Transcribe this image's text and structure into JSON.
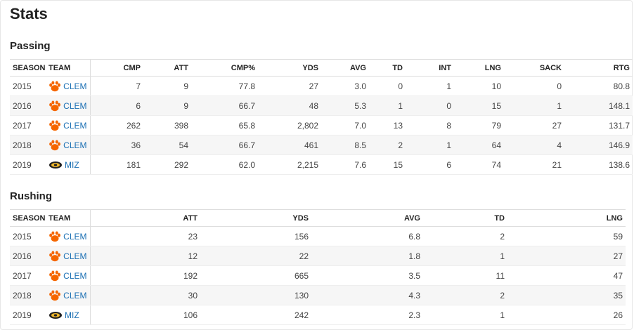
{
  "title": "Stats",
  "passing": {
    "title": "Passing",
    "headers": [
      "SEASON",
      "TEAM",
      "CMP",
      "ATT",
      "CMP%",
      "YDS",
      "AVG",
      "TD",
      "INT",
      "LNG",
      "SACK",
      "RTG"
    ],
    "rows": [
      {
        "season": "2015",
        "team": "CLEM",
        "logo": "clemson-paw-icon",
        "cmp": "7",
        "att": "9",
        "pct": "77.8",
        "yds": "27",
        "avg": "3.0",
        "td": "0",
        "int": "1",
        "lng": "10",
        "sack": "0",
        "rtg": "80.8"
      },
      {
        "season": "2016",
        "team": "CLEM",
        "logo": "clemson-paw-icon",
        "cmp": "6",
        "att": "9",
        "pct": "66.7",
        "yds": "48",
        "avg": "5.3",
        "td": "1",
        "int": "0",
        "lng": "15",
        "sack": "1",
        "rtg": "148.1"
      },
      {
        "season": "2017",
        "team": "CLEM",
        "logo": "clemson-paw-icon",
        "cmp": "262",
        "att": "398",
        "pct": "65.8",
        "yds": "2,802",
        "avg": "7.0",
        "td": "13",
        "int": "8",
        "lng": "79",
        "sack": "27",
        "rtg": "131.7"
      },
      {
        "season": "2018",
        "team": "CLEM",
        "logo": "clemson-paw-icon",
        "cmp": "36",
        "att": "54",
        "pct": "66.7",
        "yds": "461",
        "avg": "8.5",
        "td": "2",
        "int": "1",
        "lng": "64",
        "sack": "4",
        "rtg": "146.9"
      },
      {
        "season": "2019",
        "team": "MIZ",
        "logo": "missouri-tiger-icon",
        "cmp": "181",
        "att": "292",
        "pct": "62.0",
        "yds": "2,215",
        "avg": "7.6",
        "td": "15",
        "int": "6",
        "lng": "74",
        "sack": "21",
        "rtg": "138.6"
      }
    ]
  },
  "rushing": {
    "title": "Rushing",
    "headers": [
      "SEASON",
      "TEAM",
      "ATT",
      "YDS",
      "AVG",
      "TD",
      "LNG"
    ],
    "rows": [
      {
        "season": "2015",
        "team": "CLEM",
        "logo": "clemson-paw-icon",
        "att": "23",
        "yds": "156",
        "avg": "6.8",
        "td": "2",
        "lng": "59"
      },
      {
        "season": "2016",
        "team": "CLEM",
        "logo": "clemson-paw-icon",
        "att": "12",
        "yds": "22",
        "avg": "1.8",
        "td": "1",
        "lng": "27"
      },
      {
        "season": "2017",
        "team": "CLEM",
        "logo": "clemson-paw-icon",
        "att": "192",
        "yds": "665",
        "avg": "3.5",
        "td": "11",
        "lng": "47"
      },
      {
        "season": "2018",
        "team": "CLEM",
        "logo": "clemson-paw-icon",
        "att": "30",
        "yds": "130",
        "avg": "4.3",
        "td": "2",
        "lng": "35"
      },
      {
        "season": "2019",
        "team": "MIZ",
        "logo": "missouri-tiger-icon",
        "att": "106",
        "yds": "242",
        "avg": "2.3",
        "td": "1",
        "lng": "26"
      }
    ]
  },
  "colors": {
    "link": "#1a6fb3",
    "clemson": "#f56600",
    "missouri": "#f1b82d"
  }
}
